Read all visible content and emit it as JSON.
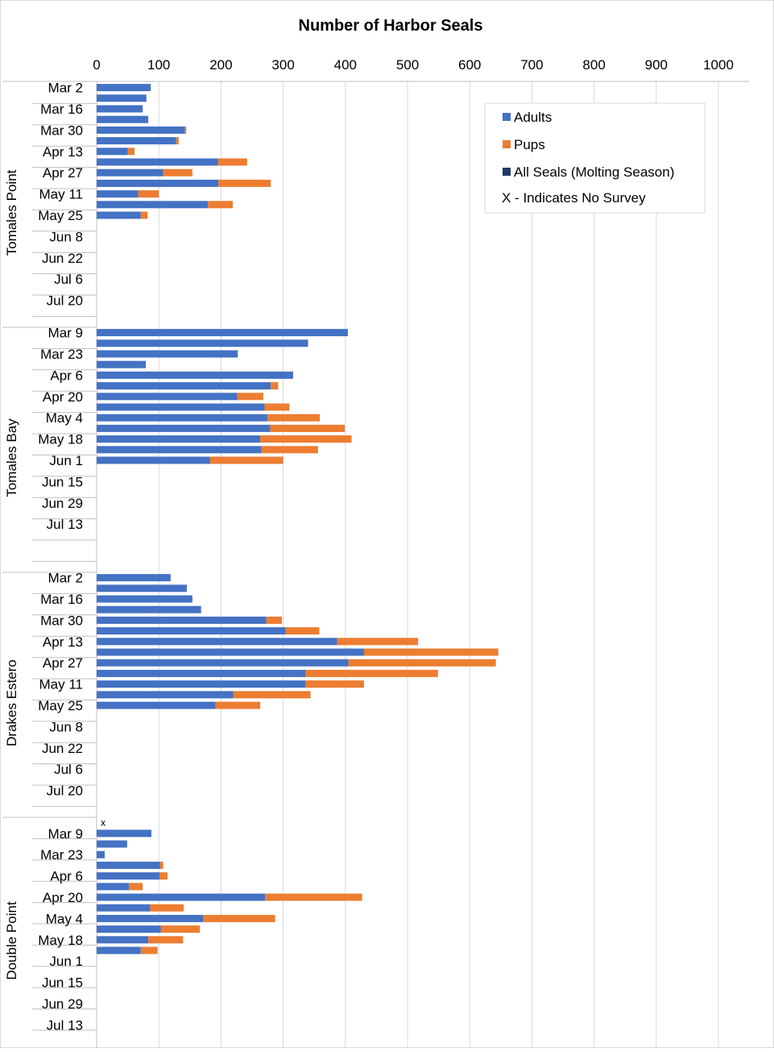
{
  "chart_data": {
    "type": "bar",
    "orientation": "horizontal",
    "stacked": true,
    "title": "Number of Harbor Seals",
    "xlabel": "",
    "ylabel": "",
    "xlim": [
      0,
      1000
    ],
    "x_ticks": [
      0,
      100,
      200,
      300,
      400,
      500,
      600,
      700,
      800,
      900,
      1000
    ],
    "grid": "vertical",
    "legend_position": "top-right",
    "legend": [
      {
        "label": "Adults",
        "color": "#4472C4",
        "marker": "square"
      },
      {
        "label": "Pups",
        "color": "#ED7D31",
        "marker": "square"
      },
      {
        "label": "All Seals (Molting Season)",
        "color": "#203864",
        "marker": "square"
      },
      {
        "label": "X - Indicates No Survey",
        "color": "#000000",
        "marker": "none"
      }
    ],
    "groups": [
      {
        "name": "Tomales Point",
        "category_labels": [
          "Mar 2",
          "Mar 16",
          "Mar 30",
          "Apr 13",
          "Apr 27",
          "May 11",
          "May 25",
          "Jun 8",
          "Jun 22",
          "Jul 6",
          "Jul 20"
        ],
        "rows": [
          {
            "adults": 87,
            "pups": 0
          },
          {
            "adults": 80,
            "pups": 0
          },
          {
            "adults": 74,
            "pups": 0
          },
          {
            "adults": 83,
            "pups": 0
          },
          {
            "adults": 142,
            "pups": 2
          },
          {
            "adults": 128,
            "pups": 4
          },
          {
            "adults": 50,
            "pups": 11
          },
          {
            "adults": 195,
            "pups": 47
          },
          {
            "adults": 107,
            "pups": 47
          },
          {
            "adults": 196,
            "pups": 84
          },
          {
            "adults": 67,
            "pups": 33
          },
          {
            "adults": 179,
            "pups": 40
          },
          {
            "adults": 71,
            "pups": 11
          },
          {
            "adults": 0,
            "pups": 0
          },
          {
            "adults": 0,
            "pups": 0
          },
          {
            "adults": 0,
            "pups": 0
          },
          {
            "adults": 0,
            "pups": 0
          },
          {
            "adults": 0,
            "pups": 0
          },
          {
            "adults": 0,
            "pups": 0
          },
          {
            "adults": 0,
            "pups": 0
          },
          {
            "adults": 0,
            "pups": 0
          },
          {
            "adults": 0,
            "pups": 0
          },
          {
            "adults": 0,
            "pups": 0
          }
        ]
      },
      {
        "name": "Tomales Bay",
        "category_labels": [
          "Mar 9",
          "Mar 23",
          "Apr 6",
          "Apr 20",
          "May 4",
          "May 18",
          "Jun 1",
          "Jun 15",
          "Jun 29",
          "Jul 13"
        ],
        "rows": [
          {
            "adults": 404,
            "pups": 0
          },
          {
            "adults": 340,
            "pups": 0
          },
          {
            "adults": 227,
            "pups": 0
          },
          {
            "adults": 79,
            "pups": 0
          },
          {
            "adults": 316,
            "pups": 0
          },
          {
            "adults": 280,
            "pups": 12
          },
          {
            "adults": 226,
            "pups": 42
          },
          {
            "adults": 270,
            "pups": 40
          },
          {
            "adults": 275,
            "pups": 84
          },
          {
            "adults": 279,
            "pups": 120
          },
          {
            "adults": 263,
            "pups": 147
          },
          {
            "adults": 265,
            "pups": 91
          },
          {
            "adults": 182,
            "pups": 118
          },
          {
            "adults": 0,
            "pups": 0
          },
          {
            "adults": 0,
            "pups": 0
          },
          {
            "adults": 0,
            "pups": 0
          },
          {
            "adults": 0,
            "pups": 0
          },
          {
            "adults": 0,
            "pups": 0
          },
          {
            "adults": 0,
            "pups": 0
          },
          {
            "adults": 0,
            "pups": 0
          },
          {
            "adults": 0,
            "pups": 0
          },
          {
            "adults": 0,
            "pups": 0
          },
          {
            "adults": 0,
            "pups": 0
          }
        ]
      },
      {
        "name": "Drakes Estero",
        "category_labels": [
          "Mar 2",
          "Mar 16",
          "Mar 30",
          "Apr 13",
          "Apr 27",
          "May 11",
          "May 25",
          "Jun 8",
          "Jun 22",
          "Jul 6",
          "Jul 20"
        ],
        "rows": [
          {
            "adults": 119,
            "pups": 0
          },
          {
            "adults": 145,
            "pups": 0
          },
          {
            "adults": 154,
            "pups": 0
          },
          {
            "adults": 168,
            "pups": 0
          },
          {
            "adults": 273,
            "pups": 25
          },
          {
            "adults": 304,
            "pups": 54
          },
          {
            "adults": 387,
            "pups": 130
          },
          {
            "adults": 430,
            "pups": 216
          },
          {
            "adults": 405,
            "pups": 237
          },
          {
            "adults": 336,
            "pups": 213
          },
          {
            "adults": 336,
            "pups": 94
          },
          {
            "adults": 220,
            "pups": 124
          },
          {
            "adults": 191,
            "pups": 72
          },
          {
            "adults": 0,
            "pups": 0
          },
          {
            "adults": 0,
            "pups": 0
          },
          {
            "adults": 0,
            "pups": 0
          },
          {
            "adults": 0,
            "pups": 0
          },
          {
            "adults": 0,
            "pups": 0
          },
          {
            "adults": 0,
            "pups": 0
          },
          {
            "adults": 0,
            "pups": 0
          },
          {
            "adults": 0,
            "pups": 0
          },
          {
            "adults": 0,
            "pups": 0
          },
          {
            "adults": 0,
            "pups": 0
          }
        ]
      },
      {
        "name": "Double Point",
        "category_labels": [
          "Mar 9",
          "Mar 23",
          "Apr 6",
          "Apr 20",
          "May 4",
          "May 18",
          "Jun 1",
          "Jun 15",
          "Jun 29",
          "Jul 13"
        ],
        "rows": [
          {
            "adults": 0,
            "pups": 0,
            "no_survey": true
          },
          {
            "adults": 88,
            "pups": 0
          },
          {
            "adults": 49,
            "pups": 0
          },
          {
            "adults": 13,
            "pups": 0
          },
          {
            "adults": 102,
            "pups": 5
          },
          {
            "adults": 101,
            "pups": 13
          },
          {
            "adults": 52,
            "pups": 22
          },
          {
            "adults": 271,
            "pups": 156
          },
          {
            "adults": 86,
            "pups": 54
          },
          {
            "adults": 171,
            "pups": 116
          },
          {
            "adults": 103,
            "pups": 63
          },
          {
            "adults": 83,
            "pups": 56
          },
          {
            "adults": 71,
            "pups": 27
          },
          {
            "adults": 0,
            "pups": 0
          },
          {
            "adults": 0,
            "pups": 0
          },
          {
            "adults": 0,
            "pups": 0
          },
          {
            "adults": 0,
            "pups": 0
          },
          {
            "adults": 0,
            "pups": 0
          },
          {
            "adults": 0,
            "pups": 0
          },
          {
            "adults": 0,
            "pups": 0
          },
          {
            "adults": 0,
            "pups": 0
          },
          {
            "adults": 0,
            "pups": 0
          }
        ]
      }
    ],
    "no_survey_marker": "x",
    "colors": {
      "adults": "#4472C4",
      "pups": "#ED7D31",
      "molting": "#203864",
      "grid": "#d9d9d9",
      "axis": "#bfbfbf",
      "legend_border": "#d9d9d9"
    }
  }
}
